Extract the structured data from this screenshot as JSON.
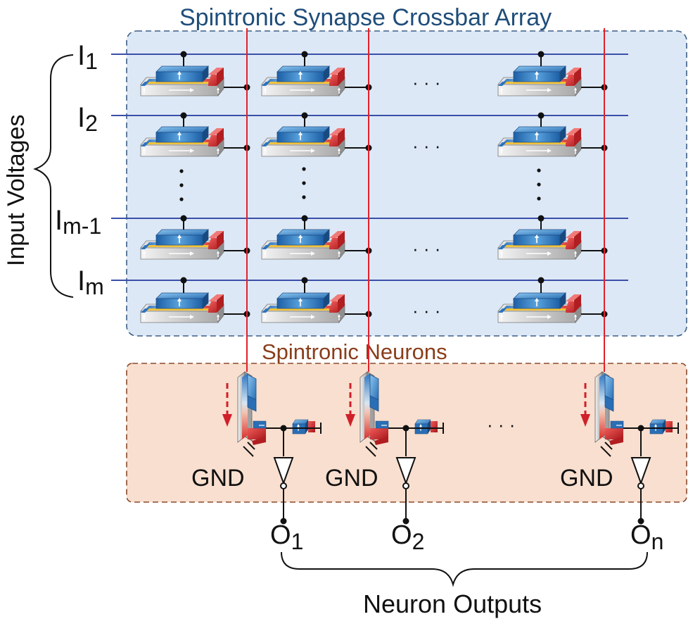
{
  "title": "Spintronic Synapse Crossbar Array",
  "neurons_label": "Spintronic Neurons",
  "inputs_group_label": "Input Voltages",
  "outputs_group_label": "Neuron Outputs",
  "inputs": [
    {
      "base": "I",
      "sub": "1"
    },
    {
      "base": "I",
      "sub": "2"
    },
    {
      "base": "I",
      "sub": "m-1"
    },
    {
      "base": "I",
      "sub": "m"
    }
  ],
  "outputs": [
    {
      "base": "O",
      "sub": "1"
    },
    {
      "base": "O",
      "sub": "2"
    },
    {
      "base": "O",
      "sub": "n"
    }
  ],
  "gnd_label": "GND",
  "ellipsis": "· · ·",
  "colors": {
    "crossbar_fill": "#dde8f6",
    "crossbar_border": "#3d5f86",
    "neuron_fill": "#f9dfcf",
    "neuron_border": "#8a4a2c",
    "row_line": "#3a4fa8",
    "column_line": "#e0212b",
    "current_arrow": "#d0202a",
    "title_text": "#1f4d7a",
    "neuron_title_text": "#8a3d1a"
  }
}
